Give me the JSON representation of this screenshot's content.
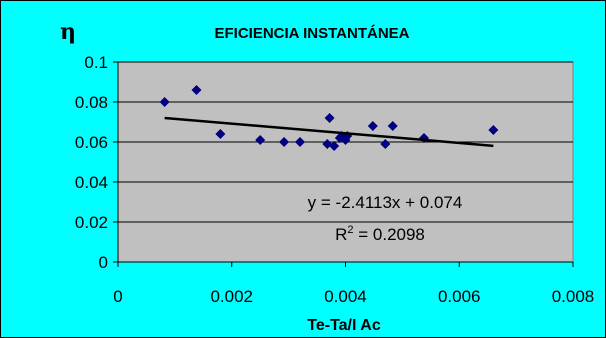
{
  "chart_data": {
    "type": "scatter",
    "title": "EFICIENCIA INSTANTÁNEA",
    "ylabel": "η",
    "xlabel": "Te-Ta/I Ac",
    "xlim": [
      0,
      0.008
    ],
    "ylim": [
      0,
      0.1
    ],
    "x_ticks": [
      "0",
      "0.002",
      "0.004",
      "0.006",
      "0.008"
    ],
    "y_ticks": [
      "0",
      "0.02",
      "0.04",
      "0.06",
      "0.08",
      "0.1"
    ],
    "x_tick_values": [
      0,
      0.002,
      0.004,
      0.006,
      0.008
    ],
    "y_tick_values": [
      0,
      0.02,
      0.04,
      0.06,
      0.08,
      0.1
    ],
    "grid": "horizontal",
    "plot_background": "#c0c0c0",
    "frame_background": "#00ffff",
    "marker_color": "#000080",
    "trendline_color": "#000000",
    "series": [
      {
        "x": [
          0.00082,
          0.00138,
          0.0018,
          0.0025,
          0.00292,
          0.0032,
          0.00368,
          0.00372,
          0.0038,
          0.0039,
          0.00393,
          0.004,
          0.00403,
          0.00448,
          0.0047,
          0.00483,
          0.00538,
          0.0066
        ],
        "y": [
          0.08,
          0.086,
          0.064,
          0.061,
          0.06,
          0.06,
          0.059,
          0.072,
          0.058,
          0.062,
          0.063,
          0.061,
          0.063,
          0.068,
          0.059,
          0.068,
          0.062,
          0.066
        ]
      }
    ],
    "trendline": {
      "type": "linear",
      "slope": -2.4113,
      "intercept": 0.074,
      "x_range": [
        0.00082,
        0.0066
      ],
      "equation": "y = -2.4113x + 0.074",
      "r2_prefix": "R",
      "r2_sup": "2",
      "r2_value": " = 0.2098"
    }
  }
}
